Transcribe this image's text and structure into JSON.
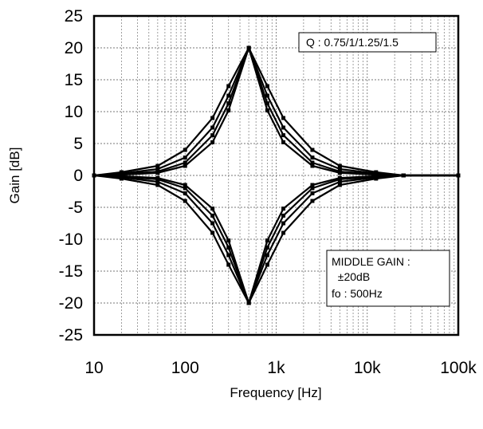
{
  "chart_data": {
    "type": "line",
    "xlabel": "Frequency [Hz]",
    "ylabel": "Gain [dB]",
    "xscale": "log",
    "xlim": [
      10,
      100000
    ],
    "ylim": [
      -25,
      25
    ],
    "x_ticks": [
      10,
      100,
      1000,
      10000,
      100000
    ],
    "x_tick_labels": [
      "10",
      "100",
      "1k",
      "10k",
      "100k"
    ],
    "y_ticks": [
      25,
      20,
      15,
      10,
      5,
      0,
      -5,
      -10,
      -15,
      -20,
      -25
    ],
    "y_tick_labels": [
      "25",
      "20",
      "15",
      "10",
      "5",
      "0",
      "-5",
      "-10",
      "-15",
      "-20",
      "-25"
    ],
    "grid": "on (major and minor log gridlines, dashed)",
    "legend_placement": "none",
    "annotations": [
      {
        "lines": [
          "Q : 0.75/1/1.25/1.5"
        ],
        "position": "top-right"
      },
      {
        "lines": [
          "MIDDLE GAIN :",
          "  ±20dB",
          "fo : 500Hz"
        ],
        "position": "bottom-right"
      }
    ],
    "center_frequency": 500,
    "peak_gain": 20,
    "q_values": [
      0.75,
      1,
      1.25,
      1.5
    ],
    "series": [
      {
        "values": [
          {
            "x": 10,
            "y": 0.0
          },
          {
            "x": 20,
            "y": 0.5
          },
          {
            "x": 50,
            "y": 1.5
          },
          {
            "x": 100,
            "y": 4.0
          },
          {
            "x": 200,
            "y": 9.0
          },
          {
            "x": 300,
            "y": 14.0
          },
          {
            "x": 500,
            "y": 20.0
          },
          {
            "x": 800,
            "y": 14.0
          },
          {
            "x": 1200,
            "y": 9.0
          },
          {
            "x": 2500,
            "y": 4.0
          },
          {
            "x": 5000,
            "y": 1.5
          },
          {
            "x": 12500,
            "y": 0.5
          },
          {
            "x": 25000,
            "y": 0.0
          },
          {
            "x": 100000,
            "y": 0.0
          }
        ]
      },
      {
        "values": [
          {
            "x": 10,
            "y": 0.0
          },
          {
            "x": 20,
            "y": 0.3
          },
          {
            "x": 50,
            "y": 1.0
          },
          {
            "x": 100,
            "y": 2.8
          },
          {
            "x": 200,
            "y": 7.5
          },
          {
            "x": 300,
            "y": 12.5
          },
          {
            "x": 500,
            "y": 20.0
          },
          {
            "x": 800,
            "y": 12.5
          },
          {
            "x": 1200,
            "y": 7.5
          },
          {
            "x": 2500,
            "y": 2.8
          },
          {
            "x": 5000,
            "y": 1.0
          },
          {
            "x": 12500,
            "y": 0.3
          },
          {
            "x": 25000,
            "y": 0.0
          },
          {
            "x": 100000,
            "y": 0.0
          }
        ]
      },
      {
        "values": [
          {
            "x": 10,
            "y": 0.0
          },
          {
            "x": 20,
            "y": 0.2
          },
          {
            "x": 50,
            "y": 0.6
          },
          {
            "x": 100,
            "y": 2.0
          },
          {
            "x": 200,
            "y": 6.3
          },
          {
            "x": 300,
            "y": 11.3
          },
          {
            "x": 500,
            "y": 20.0
          },
          {
            "x": 800,
            "y": 11.3
          },
          {
            "x": 1200,
            "y": 6.3
          },
          {
            "x": 2500,
            "y": 2.0
          },
          {
            "x": 5000,
            "y": 0.6
          },
          {
            "x": 12500,
            "y": 0.2
          },
          {
            "x": 25000,
            "y": 0.0
          },
          {
            "x": 100000,
            "y": 0.0
          }
        ]
      },
      {
        "values": [
          {
            "x": 10,
            "y": 0.0
          },
          {
            "x": 20,
            "y": 0.1
          },
          {
            "x": 50,
            "y": 0.4
          },
          {
            "x": 100,
            "y": 1.5
          },
          {
            "x": 200,
            "y": 5.2
          },
          {
            "x": 300,
            "y": 10.2
          },
          {
            "x": 500,
            "y": 20.0
          },
          {
            "x": 800,
            "y": 10.2
          },
          {
            "x": 1200,
            "y": 5.2
          },
          {
            "x": 2500,
            "y": 1.5
          },
          {
            "x": 5000,
            "y": 0.4
          },
          {
            "x": 12500,
            "y": 0.1
          },
          {
            "x": 25000,
            "y": 0.0
          },
          {
            "x": 100000,
            "y": 0.0
          }
        ]
      },
      {
        "values": [
          {
            "x": 10,
            "y": 0.0
          },
          {
            "x": 20,
            "y": -0.5
          },
          {
            "x": 50,
            "y": -1.5
          },
          {
            "x": 100,
            "y": -4.0
          },
          {
            "x": 200,
            "y": -9.0
          },
          {
            "x": 300,
            "y": -14.0
          },
          {
            "x": 500,
            "y": -20.0
          },
          {
            "x": 800,
            "y": -14.0
          },
          {
            "x": 1200,
            "y": -9.0
          },
          {
            "x": 2500,
            "y": -4.0
          },
          {
            "x": 5000,
            "y": -1.5
          },
          {
            "x": 12500,
            "y": -0.5
          },
          {
            "x": 25000,
            "y": 0.0
          },
          {
            "x": 100000,
            "y": 0.0
          }
        ]
      },
      {
        "values": [
          {
            "x": 10,
            "y": 0.0
          },
          {
            "x": 20,
            "y": -0.3
          },
          {
            "x": 50,
            "y": -1.0
          },
          {
            "x": 100,
            "y": -2.8
          },
          {
            "x": 200,
            "y": -7.5
          },
          {
            "x": 300,
            "y": -12.5
          },
          {
            "x": 500,
            "y": -20.0
          },
          {
            "x": 800,
            "y": -12.5
          },
          {
            "x": 1200,
            "y": -7.5
          },
          {
            "x": 2500,
            "y": -2.8
          },
          {
            "x": 5000,
            "y": -1.0
          },
          {
            "x": 12500,
            "y": -0.3
          },
          {
            "x": 25000,
            "y": 0.0
          },
          {
            "x": 100000,
            "y": 0.0
          }
        ]
      },
      {
        "values": [
          {
            "x": 10,
            "y": 0.0
          },
          {
            "x": 20,
            "y": -0.2
          },
          {
            "x": 50,
            "y": -0.6
          },
          {
            "x": 100,
            "y": -2.0
          },
          {
            "x": 200,
            "y": -6.3
          },
          {
            "x": 300,
            "y": -11.3
          },
          {
            "x": 500,
            "y": -20.0
          },
          {
            "x": 800,
            "y": -11.3
          },
          {
            "x": 1200,
            "y": -6.3
          },
          {
            "x": 2500,
            "y": -2.0
          },
          {
            "x": 5000,
            "y": -0.6
          },
          {
            "x": 12500,
            "y": -0.2
          },
          {
            "x": 25000,
            "y": 0.0
          },
          {
            "x": 100000,
            "y": 0.0
          }
        ]
      },
      {
        "values": [
          {
            "x": 10,
            "y": 0.0
          },
          {
            "x": 20,
            "y": -0.1
          },
          {
            "x": 50,
            "y": -0.4
          },
          {
            "x": 100,
            "y": -1.5
          },
          {
            "x": 200,
            "y": -5.2
          },
          {
            "x": 300,
            "y": -10.2
          },
          {
            "x": 500,
            "y": -20.0
          },
          {
            "x": 800,
            "y": -10.2
          },
          {
            "x": 1200,
            "y": -5.2
          },
          {
            "x": 2500,
            "y": -1.5
          },
          {
            "x": 5000,
            "y": -0.4
          },
          {
            "x": 12500,
            "y": -0.1
          },
          {
            "x": 25000,
            "y": 0.0
          },
          {
            "x": 100000,
            "y": 0.0
          }
        ]
      }
    ],
    "colors": {
      "line": "#000000",
      "grid": "#777777",
      "frame": "#000000",
      "background": "#ffffff"
    }
  }
}
